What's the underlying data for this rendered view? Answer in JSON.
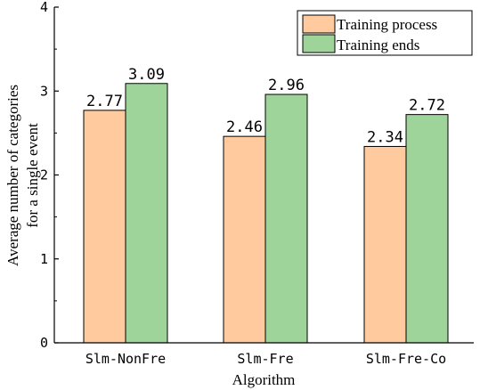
{
  "chart_data": {
    "type": "bar",
    "categories": [
      "Slm-NonFre",
      "Slm-Fre",
      "Slm-Fre-Co"
    ],
    "series": [
      {
        "name": "Training process",
        "values": [
          2.77,
          2.46,
          2.34
        ],
        "color": "#FFCB9E"
      },
      {
        "name": "Training ends",
        "values": [
          3.09,
          2.96,
          2.72
        ],
        "color": "#9ED49A"
      }
    ],
    "data_labels": [
      [
        "2.77",
        "2.46",
        "2.34"
      ],
      [
        "3.09",
        "2.96",
        "2.72"
      ]
    ],
    "xlabel": "Algorithm",
    "ylabel_lines": [
      "Average number of categories",
      "for a single event"
    ],
    "ylim": [
      0,
      4
    ],
    "yticks": [
      "0",
      "1",
      "2",
      "3",
      "4"
    ],
    "grid": false,
    "legend_position": "top-right"
  }
}
